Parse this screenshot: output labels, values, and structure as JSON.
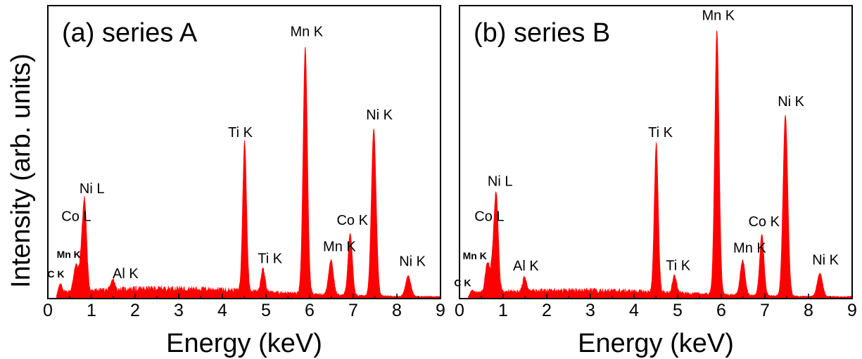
{
  "ylabel": "Intensity (arb. units)",
  "colors": {
    "spectrum": "#ff0000",
    "axes": "#000000",
    "background": "#ffffff"
  },
  "chart_data": [
    {
      "type": "area",
      "title": "(a) series A",
      "xlabel": "Energy (keV)",
      "ylabel": "Intensity (arb. units)",
      "xlim": [
        0,
        9
      ],
      "ylim": [
        0,
        100
      ],
      "x_ticks": [
        "0",
        "1",
        "2",
        "3",
        "4",
        "5",
        "6",
        "7",
        "8",
        "9"
      ],
      "grid": false,
      "y_tick_labels_shown": false,
      "background_level": 2.8,
      "peaks": [
        {
          "label": "C K",
          "energy": 0.28,
          "intensity": 4,
          "label_size": "small"
        },
        {
          "label": "Mn K",
          "energy": 0.64,
          "intensity": 9,
          "label_size": "small"
        },
        {
          "label": "Co L",
          "energy": 0.78,
          "intensity": 13
        },
        {
          "label": "Ni L",
          "energy": 0.85,
          "intensity": 26
        },
        {
          "label": "Al K",
          "energy": 1.49,
          "intensity": 3.5
        },
        {
          "label": "Ti K",
          "energy": 4.51,
          "intensity": 51
        },
        {
          "label": "Ti K",
          "energy": 4.93,
          "intensity": 8
        },
        {
          "label": "Mn K",
          "energy": 5.9,
          "intensity": 84
        },
        {
          "label": "Mn K",
          "energy": 6.49,
          "intensity": 12
        },
        {
          "label": "Co K",
          "energy": 6.93,
          "intensity": 21
        },
        {
          "label": "Ni K",
          "energy": 7.47,
          "intensity": 57
        },
        {
          "label": "Ni K",
          "energy": 8.26,
          "intensity": 7
        }
      ]
    },
    {
      "type": "area",
      "title": "(b) series B",
      "xlabel": "Energy (keV)",
      "ylabel": "Intensity (arb. units)",
      "xlim": [
        0,
        9
      ],
      "ylim": [
        0,
        100
      ],
      "x_ticks": [
        "0",
        "1",
        "2",
        "3",
        "4",
        "5",
        "6",
        "7",
        "8",
        "9"
      ],
      "grid": false,
      "y_tick_labels_shown": false,
      "background_level": 2.2,
      "peaks": [
        {
          "label": "C K",
          "energy": 0.28,
          "intensity": 2,
          "label_size": "small"
        },
        {
          "label": "Mn K",
          "energy": 0.64,
          "intensity": 10,
          "label_size": "small"
        },
        {
          "label": "Co L",
          "energy": 0.78,
          "intensity": 13
        },
        {
          "label": "Ni L",
          "energy": 0.85,
          "intensity": 29
        },
        {
          "label": "Al K",
          "energy": 1.49,
          "intensity": 5
        },
        {
          "label": "Ti K",
          "energy": 4.51,
          "intensity": 51
        },
        {
          "label": "Ti K",
          "energy": 4.93,
          "intensity": 6
        },
        {
          "label": "Mn K",
          "energy": 5.9,
          "intensity": 90
        },
        {
          "label": "Mn K",
          "energy": 6.49,
          "intensity": 12
        },
        {
          "label": "Co K",
          "energy": 6.93,
          "intensity": 21
        },
        {
          "label": "Ni K",
          "energy": 7.47,
          "intensity": 62
        },
        {
          "label": "Ni K",
          "energy": 8.26,
          "intensity": 8
        }
      ]
    }
  ]
}
